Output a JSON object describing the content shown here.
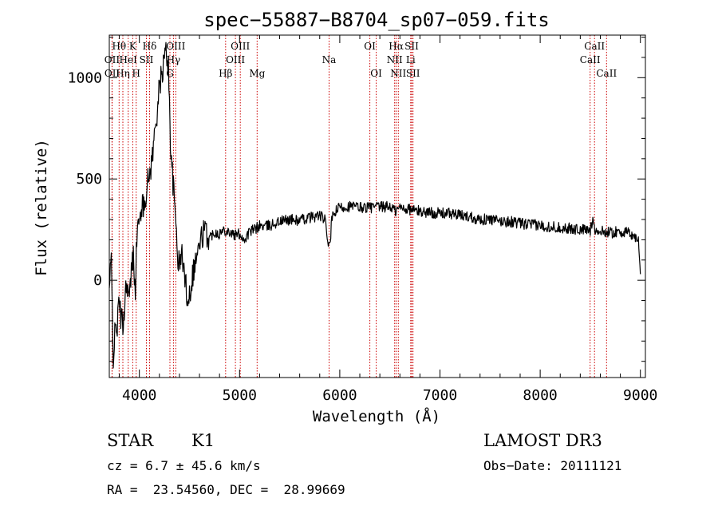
{
  "chart_data": {
    "type": "line",
    "title": "spec−55887−B8704_sp07−059.fits",
    "xlabel": "Wavelength (Å)",
    "ylabel": "Flux (relative)",
    "xlim": [
      3700,
      9050
    ],
    "ylim": [
      -480,
      1210
    ],
    "x_ticks": [
      4000,
      5000,
      6000,
      7000,
      8000,
      9000
    ],
    "y_ticks": [
      0,
      500,
      1000
    ],
    "grid": false,
    "line_color": "#000000",
    "marker_color": "#cc0000",
    "anchors": [
      [
        3700,
        -50
      ],
      [
        3720,
        100
      ],
      [
        3730,
        -150
      ],
      [
        3740,
        -370
      ],
      [
        3760,
        -250
      ],
      [
        3780,
        -220
      ],
      [
        3800,
        -100
      ],
      [
        3820,
        -200
      ],
      [
        3840,
        -220
      ],
      [
        3860,
        -50
      ],
      [
        3880,
        -10
      ],
      [
        3900,
        -110
      ],
      [
        3920,
        40
      ],
      [
        3940,
        120
      ],
      [
        3960,
        -30
      ],
      [
        3980,
        280
      ],
      [
        4000,
        260
      ],
      [
        4020,
        380
      ],
      [
        4040,
        350
      ],
      [
        4060,
        420
      ],
      [
        4080,
        470
      ],
      [
        4100,
        520
      ],
      [
        4130,
        610
      ],
      [
        4160,
        760
      ],
      [
        4190,
        900
      ],
      [
        4210,
        980
      ],
      [
        4230,
        1030
      ],
      [
        4250,
        1100
      ],
      [
        4270,
        1130
      ],
      [
        4290,
        1050
      ],
      [
        4310,
        700
      ],
      [
        4330,
        520
      ],
      [
        4350,
        380
      ],
      [
        4370,
        250
      ],
      [
        4390,
        70
      ],
      [
        4410,
        100
      ],
      [
        4430,
        130
      ],
      [
        4450,
        20
      ],
      [
        4470,
        -50
      ],
      [
        4490,
        -90
      ],
      [
        4510,
        -40
      ],
      [
        4530,
        30
      ],
      [
        4550,
        70
      ],
      [
        4570,
        120
      ],
      [
        4590,
        150
      ],
      [
        4610,
        190
      ],
      [
        4640,
        240
      ],
      [
        4670,
        230
      ],
      [
        4700,
        210
      ],
      [
        4750,
        240
      ],
      [
        4800,
        230
      ],
      [
        4850,
        250
      ],
      [
        4900,
        240
      ],
      [
        4950,
        220
      ],
      [
        5000,
        230
      ],
      [
        5050,
        200
      ],
      [
        5100,
        240
      ],
      [
        5150,
        250
      ],
      [
        5200,
        270
      ],
      [
        5250,
        265
      ],
      [
        5300,
        270
      ],
      [
        5400,
        290
      ],
      [
        5500,
        300
      ],
      [
        5600,
        295
      ],
      [
        5700,
        310
      ],
      [
        5800,
        320
      ],
      [
        5850,
        300
      ],
      [
        5880,
        200
      ],
      [
        5900,
        160
      ],
      [
        5920,
        300
      ],
      [
        5960,
        340
      ],
      [
        6000,
        360
      ],
      [
        6100,
        365
      ],
      [
        6200,
        360
      ],
      [
        6300,
        360
      ],
      [
        6400,
        360
      ],
      [
        6500,
        365
      ],
      [
        6560,
        340
      ],
      [
        6600,
        360
      ],
      [
        6700,
        350
      ],
      [
        6800,
        340
      ],
      [
        6900,
        335
      ],
      [
        7000,
        330
      ],
      [
        7100,
        330
      ],
      [
        7200,
        320
      ],
      [
        7300,
        315
      ],
      [
        7400,
        300
      ],
      [
        7500,
        300
      ],
      [
        7600,
        290
      ],
      [
        7700,
        290
      ],
      [
        7800,
        280
      ],
      [
        7900,
        275
      ],
      [
        8000,
        270
      ],
      [
        8100,
        265
      ],
      [
        8200,
        260
      ],
      [
        8300,
        255
      ],
      [
        8400,
        250
      ],
      [
        8500,
        245
      ],
      [
        8530,
        320
      ],
      [
        8550,
        240
      ],
      [
        8600,
        240
      ],
      [
        8650,
        240
      ],
      [
        8700,
        235
      ],
      [
        8800,
        240
      ],
      [
        8900,
        230
      ],
      [
        8980,
        200
      ],
      [
        9000,
        30
      ]
    ],
    "line_markers": [
      {
        "label": "Hθ",
        "wavelength": 3798,
        "row": 1
      },
      {
        "label": "OII",
        "wavelength": 3727,
        "row": 2
      },
      {
        "label": "OII",
        "wavelength": 3729,
        "row": 3
      },
      {
        "label": "Hη",
        "wavelength": 3835,
        "row": 3
      },
      {
        "label": "K",
        "wavelength": 3934,
        "row": 1
      },
      {
        "label": "HeI",
        "wavelength": 3889,
        "row": 2
      },
      {
        "label": "H",
        "wavelength": 3968,
        "row": 3
      },
      {
        "label": "SII",
        "wavelength": 4070,
        "row": 2
      },
      {
        "label": "Hδ",
        "wavelength": 4102,
        "row": 1
      },
      {
        "label": "OIII",
        "wavelength": 4363,
        "row": 1
      },
      {
        "label": "Hγ",
        "wavelength": 4340,
        "row": 2
      },
      {
        "label": "G",
        "wavelength": 4305,
        "row": 3
      },
      {
        "label": "OIII",
        "wavelength": 5007,
        "row": 1
      },
      {
        "label": "OIII",
        "wavelength": 4959,
        "row": 2
      },
      {
        "label": "Hβ",
        "wavelength": 4861,
        "row": 3
      },
      {
        "label": "Mg",
        "wavelength": 5175,
        "row": 3
      },
      {
        "label": "Na",
        "wavelength": 5893,
        "row": 2
      },
      {
        "label": "OI",
        "wavelength": 6300,
        "row": 1
      },
      {
        "label": "OI",
        "wavelength": 6364,
        "row": 3
      },
      {
        "label": "Hα",
        "wavelength": 6563,
        "row": 1
      },
      {
        "label": "SII",
        "wavelength": 6717,
        "row": 1
      },
      {
        "label": "NII",
        "wavelength": 6548,
        "row": 2
      },
      {
        "label": "Li",
        "wavelength": 6708,
        "row": 2
      },
      {
        "label": "NII",
        "wavelength": 6584,
        "row": 3
      },
      {
        "label": "SII",
        "wavelength": 6731,
        "row": 3
      },
      {
        "label": "CaII",
        "wavelength": 8542,
        "row": 1
      },
      {
        "label": "CaII",
        "wavelength": 8498,
        "row": 2
      },
      {
        "label": "CaII",
        "wavelength": 8662,
        "row": 3
      }
    ]
  },
  "info": {
    "object_class": "STAR",
    "subclass": "K1",
    "survey": "LAMOST DR3",
    "redshift": "cz = 6.7 ± 45.6 km/s",
    "obs_date": "Obs−Date: 20111121",
    "coords": "RA =  23.54560, DEC =  28.99669"
  }
}
